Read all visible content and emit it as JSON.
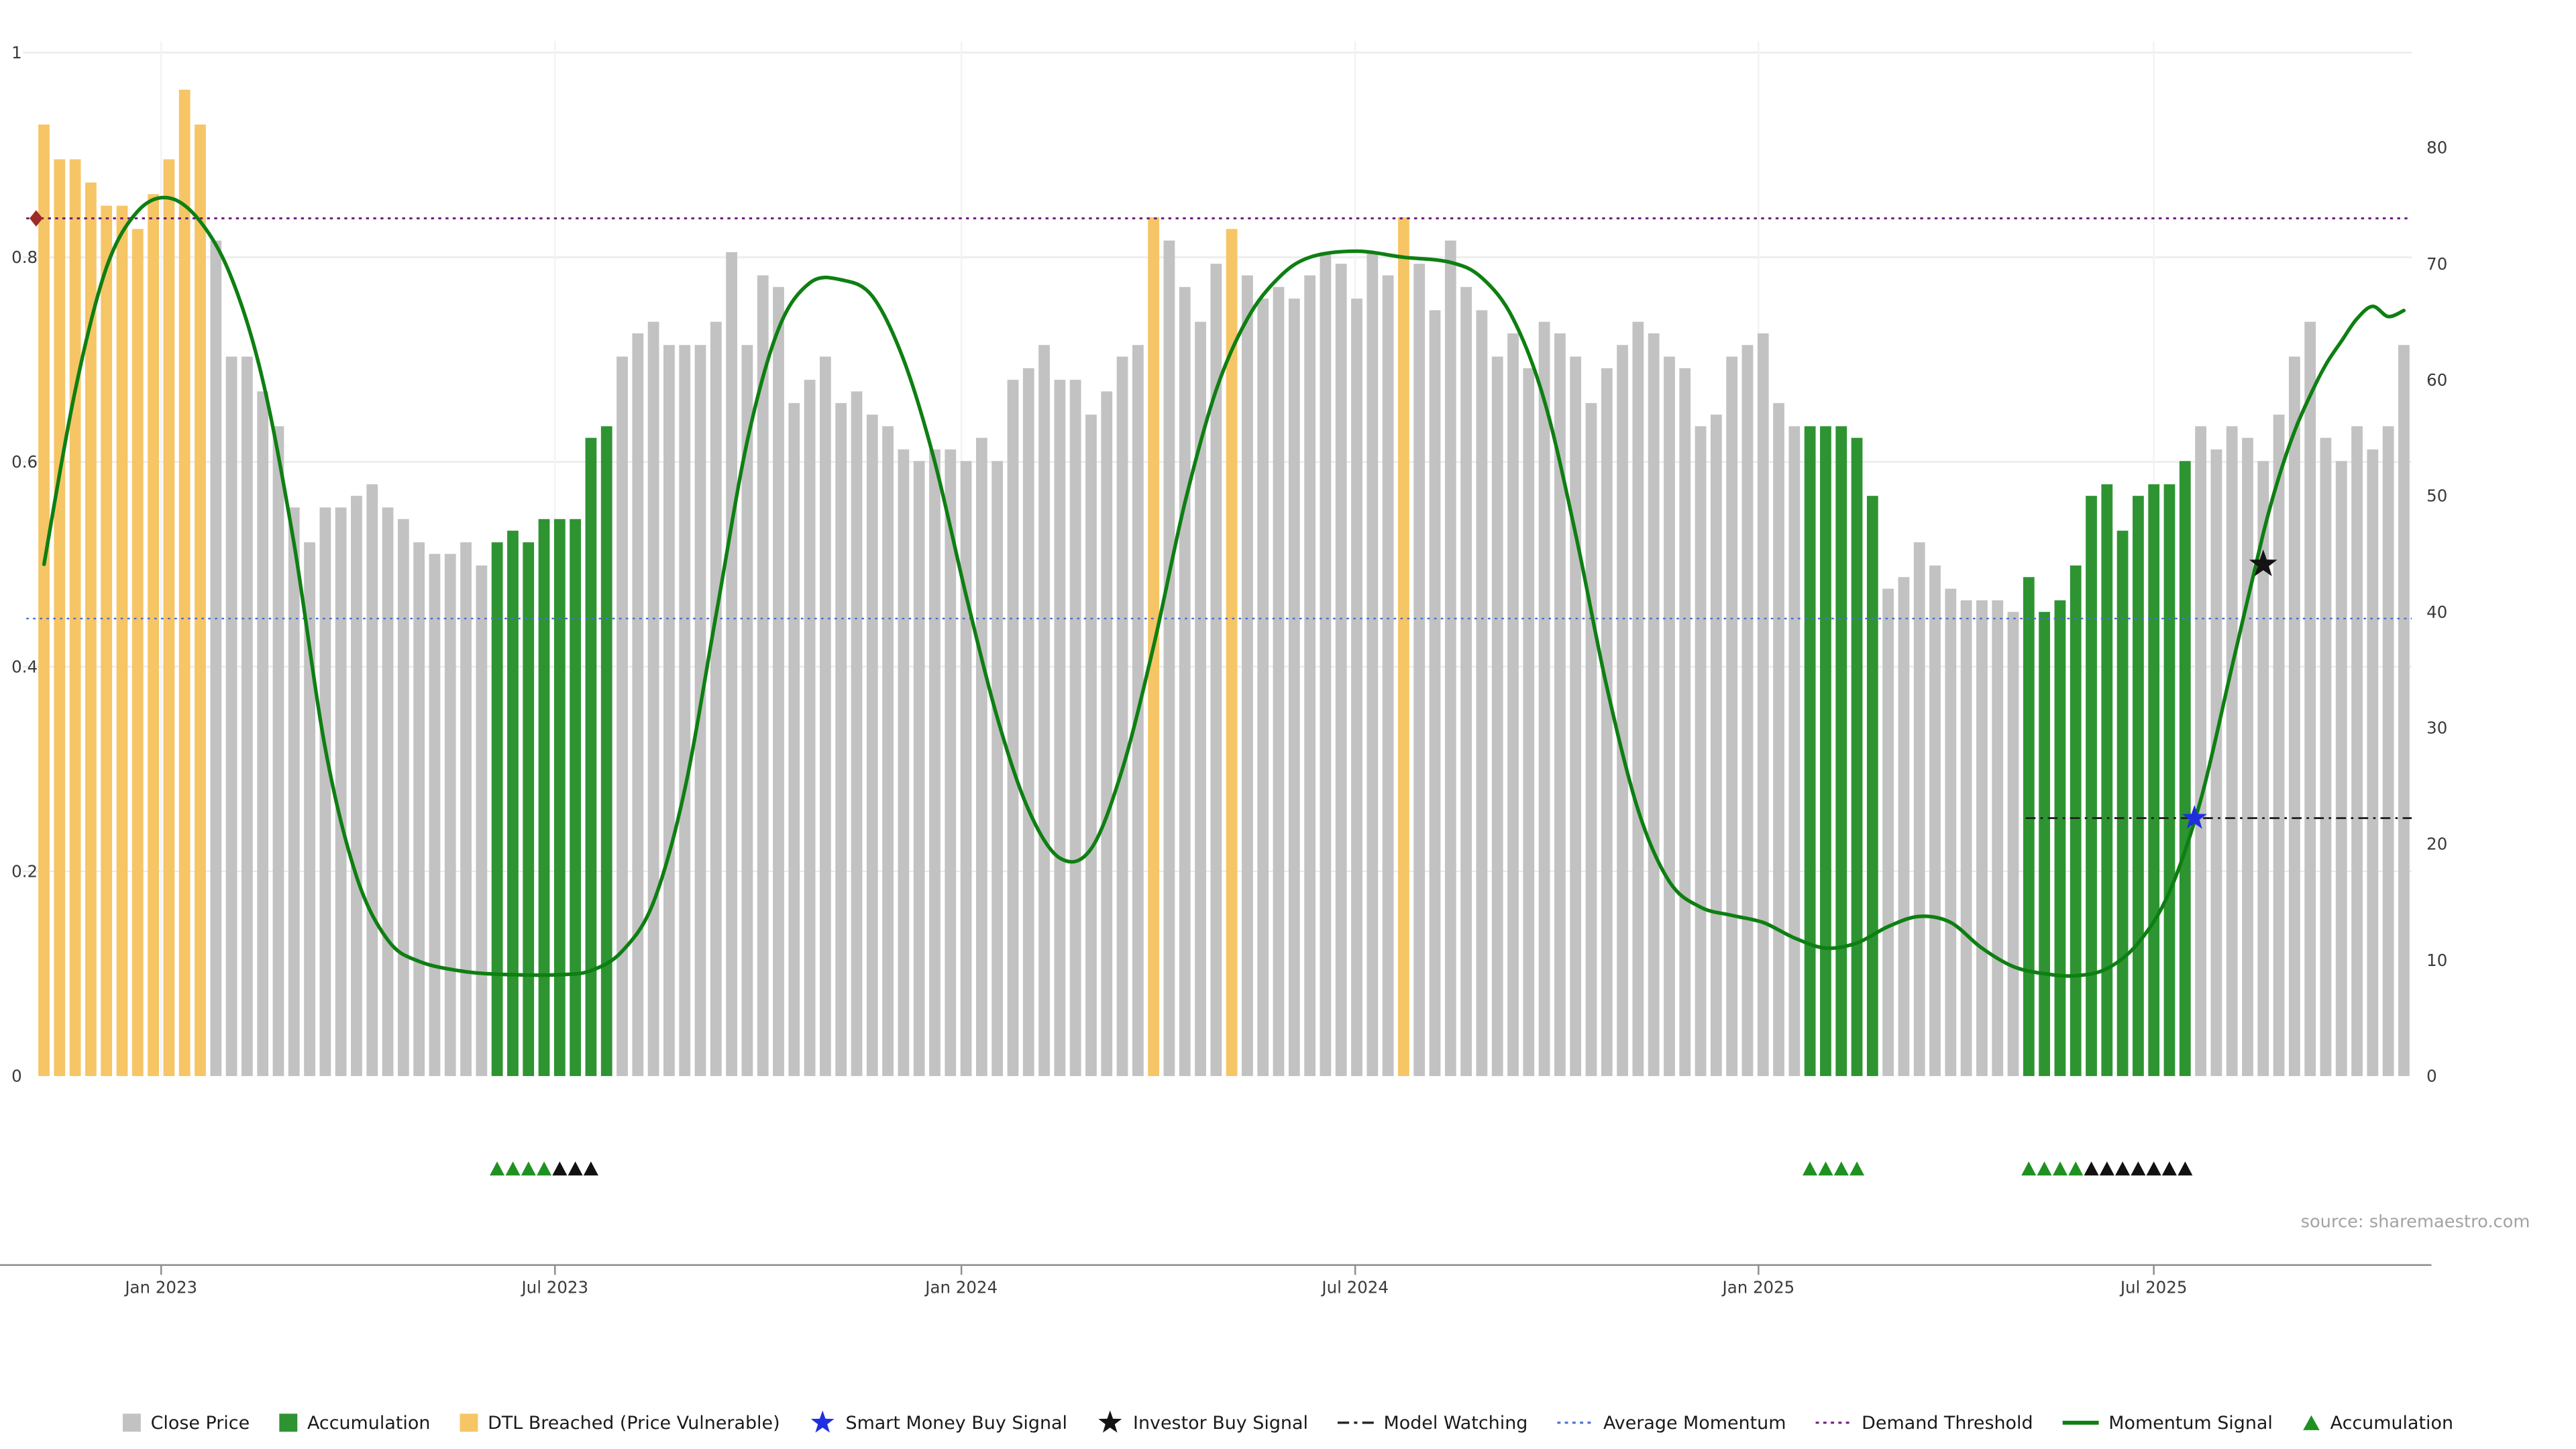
{
  "source": "source: sharemaestro.com",
  "colors": {
    "close_price": "#c2c2c2",
    "accumulation": "#2e9432",
    "dtl_breached": "#f6c566",
    "momentum_signal": "#0e7f12",
    "average_momentum": "#4a6fd4",
    "demand_threshold": "#701f7e",
    "model_watching": "#222222",
    "smart_money_star": "#1f2fe0",
    "investor_star": "#141414",
    "threshold_marker": "#9e2b25",
    "marker_green": "#1f9121",
    "marker_black": "#111111",
    "grid": "#ebebeb",
    "axis_line": "#8c8c8c"
  },
  "legend": {
    "items": [
      {
        "label": "Close Price",
        "swatch": "square",
        "color_key": "close_price"
      },
      {
        "label": "Accumulation",
        "swatch": "square",
        "color_key": "accumulation"
      },
      {
        "label": "DTL Breached (Price Vulnerable)",
        "swatch": "square",
        "color_key": "dtl_breached"
      },
      {
        "label": "Smart Money Buy Signal",
        "swatch": "star",
        "color_key": "smart_money_star"
      },
      {
        "label": "Investor Buy Signal",
        "swatch": "star",
        "color_key": "investor_star"
      },
      {
        "label": "Model Watching",
        "swatch": "dashdot-line",
        "color_key": "model_watching"
      },
      {
        "label": "Average Momentum",
        "swatch": "dotted-line",
        "color_key": "average_momentum"
      },
      {
        "label": "Demand Threshold",
        "swatch": "dotted-line",
        "color_key": "demand_threshold"
      },
      {
        "label": "Momentum Signal",
        "swatch": "solid-line",
        "color_key": "momentum_signal"
      },
      {
        "label": "Accumulation",
        "swatch": "triangle",
        "color_key": "marker_green"
      }
    ]
  },
  "chart_data": {
    "type": "bar",
    "x_unit": "weekly",
    "x_ticks": [
      {
        "label": "Jan 2023",
        "index": 7.5
      },
      {
        "label": "Jul 2023",
        "index": 32.7
      },
      {
        "label": "Jan 2024",
        "index": 58.7
      },
      {
        "label": "Jul 2024",
        "index": 83.9
      },
      {
        "label": "Jan 2025",
        "index": 109.7
      },
      {
        "label": "Jul 2025",
        "index": 135.0
      }
    ],
    "left_axis": {
      "values": [
        0,
        0.2,
        0.4,
        0.6,
        0.8,
        1
      ],
      "labels": [
        "0",
        "0.2",
        "0.4",
        "0.6",
        "0.8",
        "1"
      ]
    },
    "right_axis": {
      "values": [
        0,
        10,
        20,
        30,
        40,
        50,
        60,
        70,
        80
      ],
      "labels": [
        "0",
        "10",
        "20",
        "30",
        "40",
        "50",
        "60",
        "70",
        "80"
      ]
    },
    "left_axis_max_right_equiv": 88.2,
    "bars": {
      "values": [
        82,
        79,
        79,
        77,
        75,
        75,
        73,
        76,
        79,
        85,
        82,
        72,
        62,
        62,
        59,
        56,
        49,
        46,
        49,
        49,
        50,
        51,
        49,
        48,
        46,
        45,
        45,
        46,
        44,
        46,
        47,
        46,
        48,
        48,
        48,
        55,
        56,
        62,
        64,
        65,
        63,
        63,
        63,
        65,
        71,
        63,
        69,
        68,
        58,
        60,
        62,
        58,
        59,
        57,
        56,
        54,
        53,
        54,
        54,
        53,
        55,
        53,
        60,
        61,
        63,
        60,
        60,
        57,
        59,
        62,
        63,
        74,
        72,
        68,
        65,
        70,
        73,
        69,
        67,
        68,
        67,
        69,
        71,
        70,
        67,
        71,
        69,
        74,
        70,
        66,
        72,
        68,
        66,
        62,
        64,
        61,
        65,
        64,
        62,
        58,
        61,
        63,
        65,
        64,
        62,
        61,
        56,
        57,
        62,
        63,
        64,
        58,
        56,
        56,
        56,
        56,
        55,
        50,
        42,
        43,
        46,
        44,
        42,
        41,
        41,
        41,
        40,
        43,
        40,
        41,
        44,
        50,
        51,
        47,
        50,
        51,
        51,
        53,
        56,
        54,
        56,
        55,
        53,
        57,
        62,
        65,
        55,
        53,
        56,
        54,
        56,
        63
      ],
      "segments": [
        {
          "start": 0,
          "end": 10,
          "category": "dtl_breached"
        },
        {
          "start": 11,
          "end": 28,
          "category": "close_price"
        },
        {
          "start": 29,
          "end": 36,
          "category": "accumulation"
        },
        {
          "start": 37,
          "end": 70,
          "category": "close_price"
        },
        {
          "start": 71,
          "end": 71,
          "category": "dtl_breached"
        },
        {
          "start": 72,
          "end": 75,
          "category": "close_price"
        },
        {
          "start": 76,
          "end": 76,
          "category": "dtl_breached"
        },
        {
          "start": 77,
          "end": 86,
          "category": "close_price"
        },
        {
          "start": 87,
          "end": 87,
          "category": "dtl_breached"
        },
        {
          "start": 88,
          "end": 112,
          "category": "close_price"
        },
        {
          "start": 113,
          "end": 117,
          "category": "accumulation"
        },
        {
          "start": 118,
          "end": 126,
          "category": "close_price"
        },
        {
          "start": 127,
          "end": 137,
          "category": "accumulation"
        },
        {
          "start": 138,
          "end": 151,
          "category": "close_price"
        }
      ]
    },
    "momentum_points": [
      [
        0,
        0.5
      ],
      [
        2,
        0.67
      ],
      [
        4,
        0.79
      ],
      [
        6,
        0.845
      ],
      [
        8,
        0.858
      ],
      [
        10,
        0.835
      ],
      [
        12,
        0.78
      ],
      [
        14,
        0.68
      ],
      [
        16,
        0.52
      ],
      [
        18,
        0.32
      ],
      [
        20,
        0.195
      ],
      [
        22,
        0.133
      ],
      [
        24,
        0.112
      ],
      [
        27,
        0.102
      ],
      [
        30,
        0.099
      ],
      [
        33,
        0.099
      ],
      [
        35,
        0.103
      ],
      [
        37,
        0.122
      ],
      [
        39,
        0.17
      ],
      [
        41,
        0.28
      ],
      [
        43,
        0.45
      ],
      [
        45,
        0.62
      ],
      [
        47,
        0.73
      ],
      [
        49,
        0.775
      ],
      [
        51,
        0.778
      ],
      [
        53,
        0.762
      ],
      [
        55,
        0.7
      ],
      [
        57,
        0.6
      ],
      [
        59,
        0.47
      ],
      [
        61,
        0.35
      ],
      [
        63,
        0.26
      ],
      [
        65,
        0.213
      ],
      [
        67,
        0.222
      ],
      [
        69,
        0.3
      ],
      [
        71,
        0.42
      ],
      [
        73,
        0.56
      ],
      [
        75,
        0.67
      ],
      [
        77,
        0.74
      ],
      [
        79,
        0.78
      ],
      [
        81,
        0.8
      ],
      [
        84,
        0.806
      ],
      [
        87,
        0.8
      ],
      [
        90,
        0.795
      ],
      [
        92,
        0.78
      ],
      [
        94,
        0.74
      ],
      [
        96,
        0.66
      ],
      [
        98,
        0.53
      ],
      [
        100,
        0.38
      ],
      [
        102,
        0.26
      ],
      [
        104,
        0.19
      ],
      [
        106,
        0.165
      ],
      [
        108,
        0.157
      ],
      [
        110,
        0.15
      ],
      [
        112,
        0.135
      ],
      [
        114,
        0.125
      ],
      [
        116,
        0.13
      ],
      [
        118,
        0.146
      ],
      [
        120,
        0.156
      ],
      [
        122,
        0.15
      ],
      [
        124,
        0.125
      ],
      [
        126,
        0.107
      ],
      [
        128,
        0.1
      ],
      [
        130,
        0.098
      ],
      [
        132,
        0.105
      ],
      [
        134,
        0.13
      ],
      [
        136,
        0.18
      ],
      [
        138,
        0.27
      ],
      [
        140,
        0.4
      ],
      [
        142,
        0.53
      ],
      [
        143,
        0.585
      ],
      [
        144,
        0.63
      ],
      [
        145,
        0.665
      ],
      [
        146,
        0.695
      ],
      [
        147,
        0.718
      ],
      [
        148,
        0.74
      ],
      [
        149,
        0.752
      ],
      [
        150,
        0.742
      ],
      [
        151,
        0.748
      ]
    ],
    "overlays": {
      "demand_threshold_value": 0.838,
      "average_momentum_value": 0.447,
      "model_watching": {
        "start_index": 126.8,
        "end_index": 151.6,
        "value": 0.252
      }
    },
    "signals": {
      "smart_money_buy": {
        "index": 137.6,
        "value": 0.252
      },
      "investor_buy": {
        "index": 142.0,
        "value": 0.5
      }
    },
    "accumulation_markers": [
      {
        "index": 29,
        "color": "green"
      },
      {
        "index": 30,
        "color": "green"
      },
      {
        "index": 31,
        "color": "green"
      },
      {
        "index": 32,
        "color": "green"
      },
      {
        "index": 33,
        "color": "black"
      },
      {
        "index": 34,
        "color": "black"
      },
      {
        "index": 35,
        "color": "black"
      },
      {
        "index": 113,
        "color": "green"
      },
      {
        "index": 114,
        "color": "green"
      },
      {
        "index": 115,
        "color": "green"
      },
      {
        "index": 116,
        "color": "green"
      },
      {
        "index": 127,
        "color": "green"
      },
      {
        "index": 128,
        "color": "green"
      },
      {
        "index": 129,
        "color": "green"
      },
      {
        "index": 130,
        "color": "green"
      },
      {
        "index": 131,
        "color": "black"
      },
      {
        "index": 132,
        "color": "black"
      },
      {
        "index": 133,
        "color": "black"
      },
      {
        "index": 134,
        "color": "black"
      },
      {
        "index": 135,
        "color": "black"
      },
      {
        "index": 136,
        "color": "black"
      },
      {
        "index": 137,
        "color": "black"
      }
    ]
  }
}
